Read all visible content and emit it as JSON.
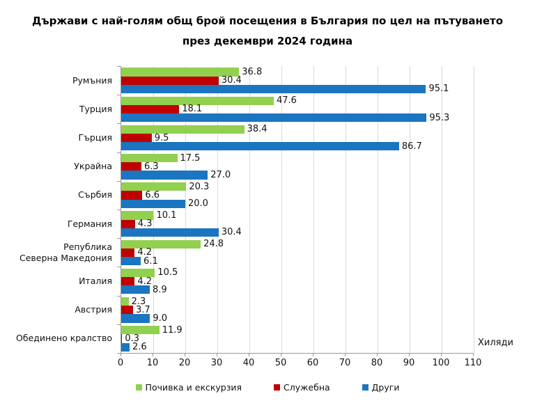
{
  "chart_data": {
    "type": "bar",
    "orientation": "horizontal",
    "title": "Държави с най-голям общ брой посещения в България по цел на пътуването през декември 2024 година",
    "title_lines": [
      "Държави с най-голям общ брой посещения в България по цел на пътуването",
      "през декември 2024 година"
    ],
    "categories": [
      "Румъния",
      "Турция",
      "Гърция",
      "Украйна",
      "Сърбия",
      "Германия",
      "Република\nСеверна Македония",
      "Италия",
      "Австрия",
      "Обединено кралство"
    ],
    "series": [
      {
        "name": "Почивка и екскурзия",
        "color": "#92D050",
        "values": [
          36.8,
          47.6,
          38.4,
          17.5,
          20.3,
          10.1,
          24.8,
          10.5,
          2.3,
          11.9
        ]
      },
      {
        "name": "Служебна",
        "color": "#C00000",
        "values": [
          30.4,
          18.1,
          9.5,
          6.3,
          6.6,
          4.3,
          4.2,
          4.2,
          3.7,
          0.3
        ]
      },
      {
        "name": "Други",
        "color": "#1B75C0",
        "values": [
          95.1,
          95.3,
          86.7,
          27.0,
          20.0,
          30.4,
          6.1,
          8.9,
          9.0,
          2.6
        ]
      }
    ],
    "xlabel": "Хиляди",
    "x_ticks": [
      0,
      10,
      20,
      30,
      40,
      50,
      60,
      70,
      80,
      90,
      100,
      110
    ],
    "xlim": [
      0,
      110
    ],
    "value_decimals": 1,
    "grid": true,
    "legend_position": "bottom",
    "colors": {
      "gridline": "#d9d9d9",
      "axis": "#999999",
      "text": "#111111",
      "title": "#000000"
    }
  }
}
